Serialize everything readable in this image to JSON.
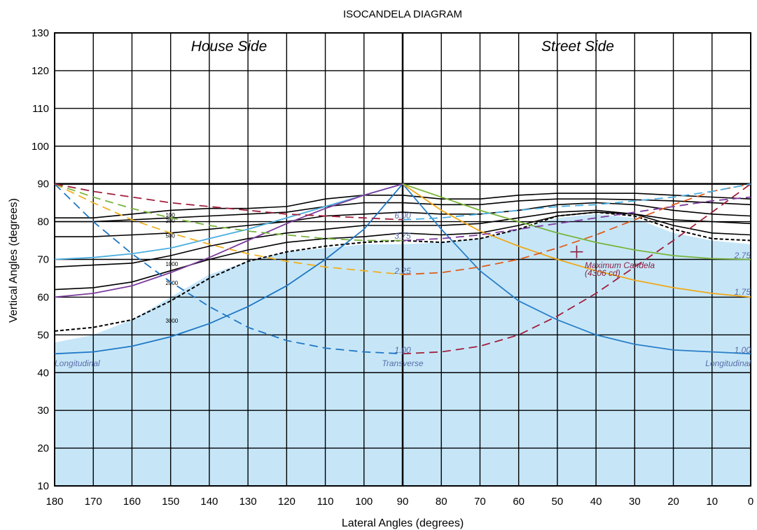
{
  "chart_data": {
    "type": "line",
    "title": "ISOCANDELA DIAGRAM",
    "xlabel": "Lateral Angles (degrees)",
    "ylabel": "Vertical Angles (degrees)",
    "xlim": [
      180,
      0
    ],
    "ylim": [
      10,
      130
    ],
    "x_ticks": [
      180,
      170,
      160,
      150,
      140,
      130,
      120,
      110,
      100,
      90,
      80,
      70,
      60,
      50,
      40,
      30,
      20,
      10,
      0
    ],
    "y_ticks": [
      10,
      20,
      30,
      40,
      50,
      60,
      70,
      80,
      90,
      100,
      110,
      120,
      130
    ],
    "grid": true,
    "annotations": {
      "house_side": "House Side",
      "street_side": "Street Side",
      "max_candela_1": "Maximum Candela",
      "max_candela_2": "(4306 cd)",
      "longitudinal_left": "Longitudinal",
      "longitudinal_right": "Longitudinal",
      "transverse": "Transverse",
      "label_100": "1.00",
      "label_100_right": "1.00",
      "label_175": "1.75",
      "label_225": "2.25",
      "label_275": "2.75",
      "label_375": "3.75",
      "label_600": "6.00"
    },
    "max_candela_point": {
      "x": 45,
      "y": 72
    },
    "shaded_region": {
      "color": "#c6e6f8",
      "x": [
        180,
        170,
        160,
        150,
        140,
        130,
        120,
        110,
        100,
        90,
        80,
        70,
        60,
        50,
        40,
        30,
        20,
        10,
        0
      ],
      "y": [
        48,
        50,
        54,
        60,
        66,
        69.5,
        72,
        73,
        74,
        74,
        74.5,
        75.5,
        78,
        81,
        82,
        81,
        77,
        75,
        74
      ]
    },
    "isocandela": [
      {
        "label": "100",
        "color": "#000000",
        "x": [
          180,
          170,
          160,
          150,
          140,
          130,
          120,
          110,
          100,
          90,
          80,
          70,
          60,
          50,
          40,
          30,
          20,
          10,
          0
        ],
        "y": [
          81,
          81,
          82,
          83,
          83.5,
          83.5,
          84,
          86,
          87,
          87,
          86,
          86,
          87,
          87.5,
          87.5,
          87.5,
          87,
          86.5,
          86
        ]
      },
      {
        "label": "200",
        "color": "#000000",
        "x": [
          180,
          170,
          160,
          150,
          140,
          130,
          120,
          110,
          100,
          90,
          80,
          70,
          60,
          50,
          40,
          30,
          20,
          10,
          0
        ],
        "y": [
          80,
          80,
          80.5,
          81,
          81.5,
          82,
          82.5,
          84,
          85,
          85,
          84.5,
          84.5,
          85.5,
          86,
          86,
          85.8,
          85.5,
          85,
          84.5
        ]
      },
      {
        "label": "500",
        "color": "#000000",
        "x": [
          180,
          170,
          160,
          150,
          140,
          130,
          120,
          110,
          100,
          90,
          80,
          70,
          60,
          50,
          40,
          30,
          20,
          10,
          0
        ],
        "y": [
          76,
          76,
          76.5,
          77,
          78,
          79,
          80,
          81.5,
          82,
          82.5,
          82,
          82,
          83,
          84.5,
          85,
          84.5,
          83,
          82,
          81.5
        ]
      },
      {
        "label": "1000",
        "color": "#000000",
        "x": [
          180,
          170,
          160,
          150,
          140,
          130,
          120,
          110,
          100,
          90,
          80,
          70,
          60,
          50,
          40,
          30,
          20,
          10,
          0
        ],
        "y": [
          68,
          68.5,
          69,
          71,
          73.5,
          75.5,
          77,
          78,
          79,
          79,
          79,
          79.5,
          81,
          82.5,
          83,
          82,
          80.5,
          80,
          79.5
        ]
      },
      {
        "label": "2000",
        "color": "#000000",
        "x": [
          180,
          170,
          160,
          150,
          140,
          130,
          120,
          110,
          100,
          90,
          80,
          70,
          60,
          50,
          40,
          30,
          20,
          10,
          0
        ],
        "y": [
          62,
          62.5,
          64,
          67,
          70,
          72.5,
          74.5,
          75.5,
          76,
          77,
          76.5,
          77,
          79,
          81.5,
          82.5,
          82,
          79,
          77,
          76.5
        ]
      },
      {
        "label": "3000",
        "color": "#000000",
        "x": [
          180,
          170,
          160,
          150,
          140,
          130,
          120,
          110,
          100,
          90,
          80,
          70,
          60,
          50,
          40,
          30,
          20,
          10,
          0
        ],
        "y": [
          51,
          52,
          54,
          59,
          65,
          69.5,
          72,
          73.5,
          74.5,
          75,
          74.5,
          75.5,
          78,
          81.5,
          82.5,
          81.5,
          78,
          75.5,
          75
        ]
      }
    ],
    "series": [
      {
        "name": "1.00",
        "color": "#1f77c4",
        "style": "solid",
        "x": [
          180,
          170,
          160,
          150,
          140,
          130,
          120,
          110,
          100,
          90
        ],
        "y": [
          45,
          45.5,
          47,
          49.5,
          53,
          57.5,
          63,
          70,
          78,
          90
        ]
      },
      {
        "name": "1.00",
        "color": "#2b7fc8",
        "style": "solid",
        "x": [
          90,
          80,
          70,
          60,
          50,
          40,
          30,
          20,
          10,
          0
        ],
        "y": [
          90,
          78,
          67,
          59,
          54,
          50,
          47.5,
          46,
          45.5,
          45
        ]
      },
      {
        "name": "1.75",
        "color": "#f0a818",
        "style": "solid",
        "x": [
          90,
          80,
          70,
          60,
          50,
          40,
          30,
          20,
          10,
          0
        ],
        "y": [
          90,
          83,
          77.5,
          73.5,
          70,
          67,
          64.5,
          62.5,
          61,
          60
        ]
      },
      {
        "name": "2.75",
        "color": "#78b43c",
        "style": "solid",
        "x": [
          90,
          80,
          70,
          60,
          50,
          40,
          30,
          20,
          10,
          0
        ],
        "y": [
          90,
          86.5,
          83,
          80,
          77,
          74.5,
          72.5,
          71,
          70.2,
          70
        ]
      },
      {
        "name": "2.75",
        "color": "#4aaee0",
        "style": "solid",
        "x": [
          180,
          170,
          160,
          150,
          140,
          130,
          120,
          110,
          100,
          90
        ],
        "y": [
          70,
          70.5,
          71.5,
          73,
          75.5,
          78,
          81,
          84,
          87,
          90
        ]
      },
      {
        "name": "3.75",
        "color": "#7c3c9c",
        "style": "solid",
        "x": [
          180,
          170,
          160,
          150,
          140,
          130,
          120,
          110,
          100,
          90
        ],
        "y": [
          60,
          61,
          63,
          66.5,
          70.5,
          75,
          79.5,
          83.5,
          87,
          90
        ]
      },
      {
        "name": "1.75",
        "color": "#e05c1c",
        "style": "dashed",
        "x": [
          90,
          80,
          70,
          60,
          50,
          40,
          30,
          20,
          10,
          0
        ],
        "y": [
          66,
          66.5,
          68,
          70,
          73,
          76.5,
          80.5,
          84.5,
          88,
          90
        ]
      },
      {
        "name": "2.25",
        "color": "#f0b020",
        "style": "dashed",
        "x": [
          180,
          170,
          160,
          150,
          140,
          130,
          120,
          110,
          100,
          90
        ],
        "y": [
          90,
          85,
          80.5,
          77,
          74,
          71.5,
          69.5,
          68,
          67,
          66
        ]
      },
      {
        "name": "1.00",
        "color": "#1f77c4",
        "style": "dashed",
        "x": [
          180,
          170,
          160,
          150,
          140,
          130,
          120,
          110,
          100,
          90
        ],
        "y": [
          90,
          80,
          71.5,
          64,
          57.5,
          52,
          48.5,
          46.5,
          45.5,
          45
        ]
      },
      {
        "name": "1.00",
        "color": "#a0203c",
        "style": "dashed",
        "x": [
          90,
          80,
          70,
          60,
          50,
          40,
          30,
          20,
          10,
          0
        ],
        "y": [
          45,
          45.5,
          47,
          50,
          55,
          61,
          68,
          75,
          82.5,
          90
        ]
      },
      {
        "name": "3.75",
        "color": "#7c3c9c",
        "style": "dashed",
        "x": [
          90,
          80,
          70,
          60,
          50,
          40,
          30,
          20,
          10,
          0
        ],
        "y": [
          75,
          75.5,
          76.5,
          78,
          79.5,
          81,
          82.5,
          84,
          85.5,
          86.5
        ]
      },
      {
        "name": "2.75",
        "color": "#78b43c",
        "style": "dashed",
        "x": [
          180,
          170,
          160,
          150,
          140,
          130,
          120,
          110,
          100,
          90
        ],
        "y": [
          90,
          86.5,
          83.5,
          81,
          79,
          77.5,
          76.5,
          75.5,
          75,
          75
        ]
      },
      {
        "name": "6.00",
        "color": "#a0203c",
        "style": "dashed",
        "x": [
          180,
          170,
          160,
          150,
          140,
          130,
          120,
          110,
          100,
          90
        ],
        "y": [
          90,
          88,
          86.5,
          85,
          84,
          83,
          82,
          81.5,
          81,
          80.5
        ]
      },
      {
        "name": "6.00",
        "color": "#4aaee0",
        "style": "dashed",
        "x": [
          90,
          80,
          70,
          60,
          50,
          40,
          30,
          20,
          10,
          0
        ],
        "y": [
          80.5,
          81,
          82,
          83,
          84,
          84.5,
          85.5,
          86.5,
          88,
          90
        ]
      }
    ]
  }
}
